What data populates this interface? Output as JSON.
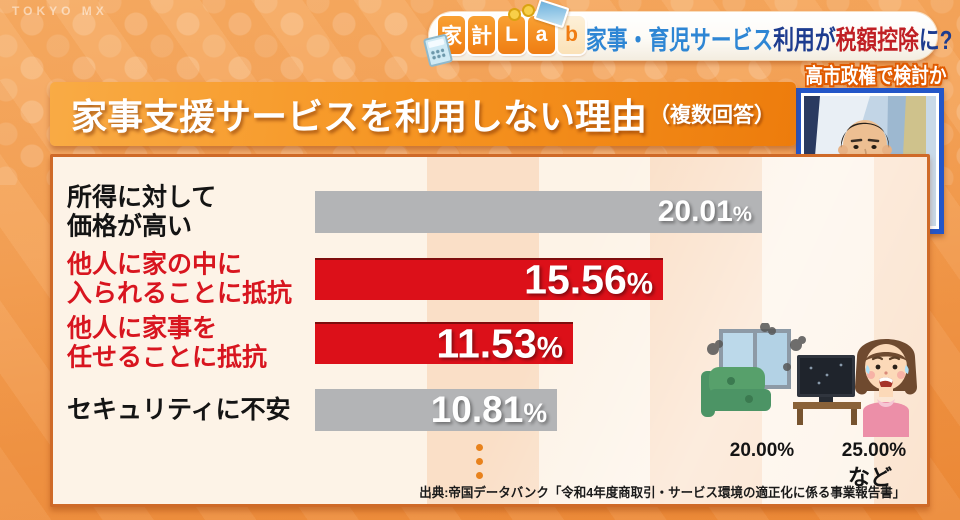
{
  "watermark": "TOKYO MX",
  "program_header": {
    "logo_blocks": [
      "家",
      "計",
      "L",
      "a",
      "b"
    ],
    "headline_segments": [
      {
        "text": "家事・育児サービス",
        "color": "#2e86d4"
      },
      {
        "text": "利用が",
        "color": "#1d3c8f"
      },
      {
        "text": "税額控除",
        "color": "#c01f24"
      },
      {
        "text": "に?",
        "color": "#1d3c8f"
      }
    ]
  },
  "sub_headline": "高市政権で検討か",
  "title": {
    "main": "家事支援サービスを利用しない理由",
    "note": "（複数回答）"
  },
  "chart": {
    "rows": [
      {
        "label": "所得に対して\n価格が高い",
        "value_display": "20.01",
        "unit": "%",
        "emphasis": false
      },
      {
        "label": "他人に家の中に\n入られることに抵抗",
        "value_display": "15.56",
        "unit": "%",
        "emphasis": true
      },
      {
        "label": "他人に家事を\n任せることに抵抗",
        "value_display": "11.53",
        "unit": "%",
        "emphasis": true
      },
      {
        "label": "セキュリティに不安",
        "value_display": "10.81",
        "unit": "%",
        "emphasis": false
      }
    ],
    "axis_ticks": [
      "20.00%",
      "25.00%"
    ],
    "etc_label": "など"
  },
  "source": "出典:帝国データバンク「令和4年度商取引・サービス環境の適正化に係る事業報告書」",
  "colors": {
    "background_orange": "#f4a257",
    "banner_orange": "#f69522",
    "panel_cream": "#fdf3e7",
    "panel_border": "#cf6a28",
    "stripe_peach": "#f6c49a",
    "bar_gray": "#b3b4b6",
    "bar_red": "#dc1019",
    "label_red": "#d8151f",
    "headline_blue": "#2e86d4",
    "headline_navy": "#1d3c8f",
    "headline_red": "#c01f24",
    "inset_border_blue": "#2356c8",
    "dot_orange": "#e8821c"
  },
  "chart_data": {
    "type": "bar",
    "orientation": "horizontal",
    "title": "家事支援サービスを利用しない理由（複数回答）",
    "categories": [
      "所得に対して価格が高い",
      "他人に家の中に入られることに抵抗",
      "他人に家事を任せることに抵抗",
      "セキュリティに不安"
    ],
    "values": [
      20.01,
      15.56,
      11.53,
      10.81
    ],
    "unit": "%",
    "xlim": [
      0,
      27.5
    ],
    "x_ticks_labeled": [
      "20.00%",
      "25.00%"
    ],
    "highlighted_categories": [
      "他人に家の中に入られることに抵抗",
      "他人に家事を任せることに抵抗"
    ],
    "truncated": true,
    "truncation_note": "など",
    "legend": "none",
    "grid": "alternating 5% vertical bands",
    "source": "出典:帝国データバンク「令和4年度商取引・サービス環境の適正化に係る事業報告書」"
  }
}
